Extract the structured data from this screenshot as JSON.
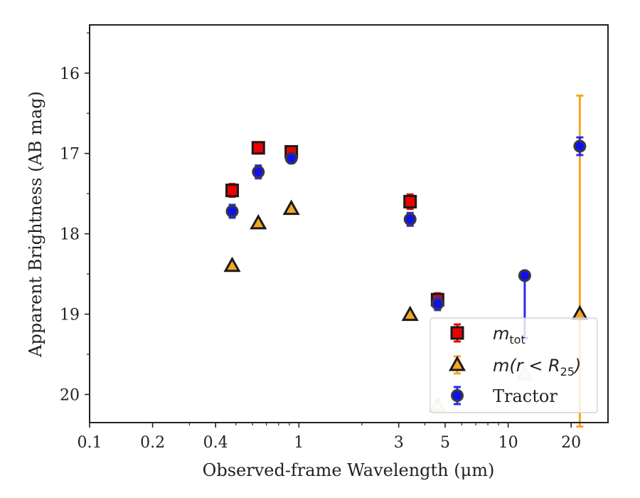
{
  "chart_data": {
    "type": "scatter",
    "xlabel": "Observed-frame Wavelength (μm)",
    "ylabel": "Apparent Brightness (AB mag)",
    "xscale": "log",
    "xlim": [
      0.1,
      30
    ],
    "ylim": [
      20.35,
      15.4
    ],
    "y_inverted": true,
    "xticks": [
      0.1,
      0.2,
      0.4,
      1,
      3,
      5,
      10,
      20
    ],
    "xtick_labels": [
      "0.1",
      "0.2",
      "0.4",
      "1",
      "3",
      "5",
      "10",
      "20"
    ],
    "yticks": [
      16,
      17,
      18,
      19,
      20
    ],
    "ytick_labels": [
      "16",
      "17",
      "18",
      "19",
      "20"
    ],
    "legend_position": "lower-right",
    "series": [
      {
        "name": "m_tot",
        "legend_main": "m",
        "legend_sub": "tot",
        "marker": "square",
        "color": "#ee0000",
        "ecolor": "#ee0000",
        "points": [
          {
            "x": 0.48,
            "y": 17.46,
            "err": 0.08
          },
          {
            "x": 0.64,
            "y": 16.93,
            "err": 0.07
          },
          {
            "x": 0.92,
            "y": 16.98,
            "err": 0.07
          },
          {
            "x": 3.4,
            "y": 17.6,
            "err": 0.09
          },
          {
            "x": 4.6,
            "y": 18.82,
            "err": 0.08
          }
        ]
      },
      {
        "name": "m(r < R25)",
        "legend_main": "m(r < R",
        "legend_sub": "25",
        "legend_close": ")",
        "marker": "triangle",
        "color": "#f5a623",
        "ecolor": "#f5a623",
        "points": [
          {
            "x": 0.48,
            "y": 18.4,
            "err": 0
          },
          {
            "x": 0.64,
            "y": 17.87,
            "err": 0
          },
          {
            "x": 0.92,
            "y": 17.69,
            "err": 0
          },
          {
            "x": 3.4,
            "y": 19.01,
            "err": 0
          },
          {
            "x": 4.6,
            "y": 20.14,
            "err": 0.07,
            "faded": true
          },
          {
            "x": 12,
            "y": 19.75,
            "err": 0,
            "faded": true
          },
          {
            "x": 22,
            "y": 19.0,
            "err_up": 2.72,
            "err_down": 1.4
          }
        ]
      },
      {
        "name": "Tractor",
        "legend_main": "Tractor",
        "marker": "circle",
        "color": "#1010ee",
        "ecolor": "#2b2bee",
        "points": [
          {
            "x": 0.48,
            "y": 17.72,
            "err": 0.08
          },
          {
            "x": 0.64,
            "y": 17.23,
            "err": 0.08
          },
          {
            "x": 0.92,
            "y": 17.06,
            "err": 0.06
          },
          {
            "x": 3.4,
            "y": 17.82,
            "err": 0.08
          },
          {
            "x": 4.6,
            "y": 18.87,
            "err": 0.08
          },
          {
            "x": 12,
            "y": 18.52,
            "err_up": 0,
            "err_down": 0.78
          },
          {
            "x": 22,
            "y": 16.91,
            "err": 0.11
          }
        ]
      }
    ]
  }
}
